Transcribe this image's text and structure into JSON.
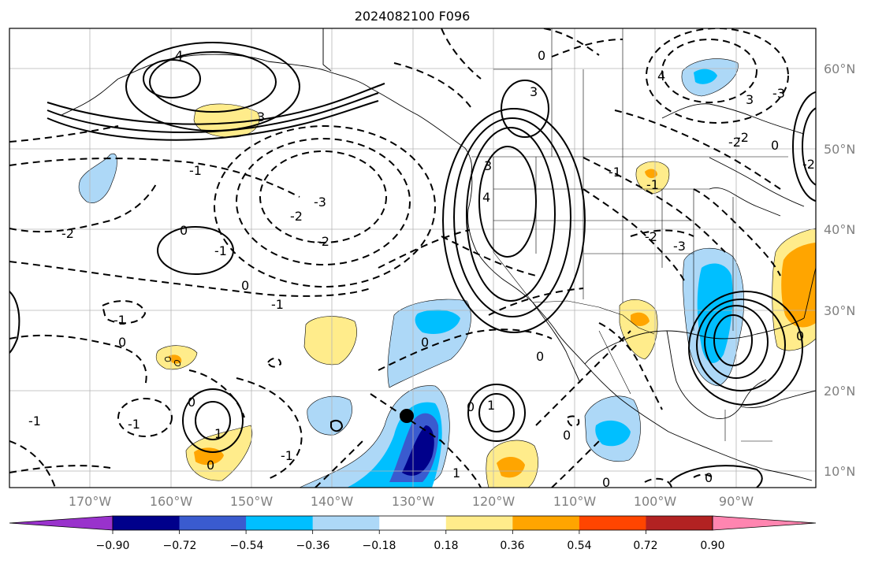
{
  "title": "2024082100 F096",
  "map": {
    "lon_labels": [
      "170°W",
      "160°W",
      "150°W",
      "140°W",
      "130°W",
      "120°W",
      "110°W",
      "100°W",
      "90°W"
    ],
    "lat_labels": [
      "60°N",
      "50°N",
      "40°N",
      "30°N",
      "20°N",
      "10°N"
    ],
    "contour_labels": [
      "4",
      "3",
      "-1",
      "-2",
      "0",
      "-1",
      "-3",
      "-2",
      "0",
      "-1",
      "0",
      "-2",
      "-1",
      "0",
      "0",
      "1",
      "-1",
      "0",
      "1",
      "3",
      "3",
      "4",
      "-1",
      "0",
      "-3",
      "-2",
      "-1",
      "0",
      "-1",
      "-3",
      "-2",
      "0",
      "0",
      "-2",
      "0",
      "1",
      "0",
      "4",
      "3",
      "-2",
      "0",
      "-1",
      "0"
    ],
    "station_marker": "black-dot"
  },
  "colorbar": {
    "tick_labels": [
      "−0.90",
      "−0.72",
      "−0.54",
      "−0.36",
      "−0.18",
      "0.18",
      "0.36",
      "0.54",
      "0.72",
      "0.90"
    ],
    "colors": [
      "#9932cc",
      "#00008b",
      "#3a5bcf",
      "#00bfff",
      "#add8f7",
      "#ffffff",
      "#ffec8b",
      "#ffa500",
      "#ff4500",
      "#b22222",
      "#ff85b0"
    ]
  }
}
